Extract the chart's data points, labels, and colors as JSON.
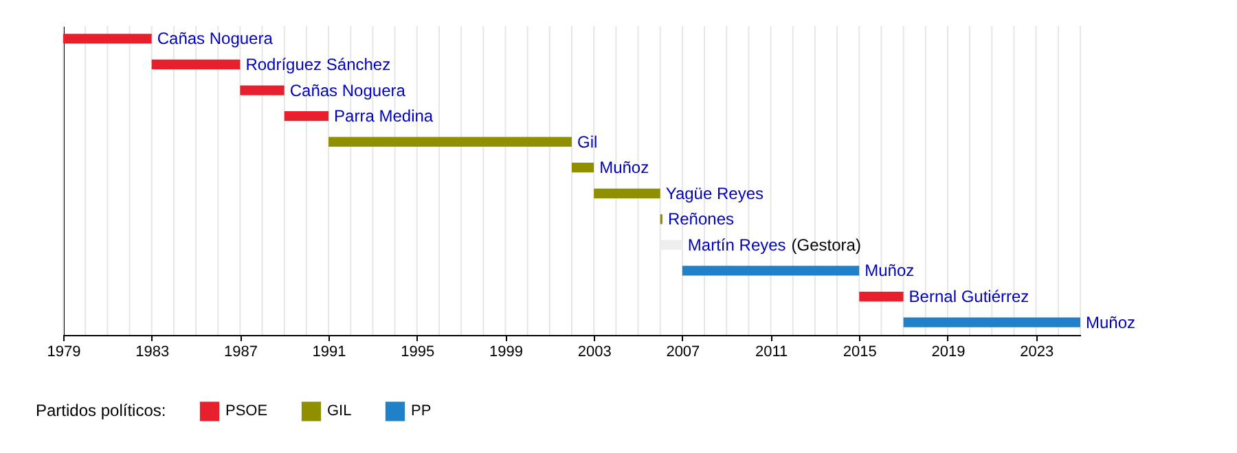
{
  "chart_data": {
    "type": "bar",
    "orientation": "horizontal",
    "legend_title": "Partidos políticos:",
    "legend": "bottom left",
    "grid": "x",
    "tick_labels": "x",
    "categories": [
      "Cañas Noguera",
      "Rodríguez Sánchez",
      "Cañas Noguera",
      "Parra Medina",
      "Gil",
      "Muñoz",
      "Yagüe Reyes",
      "Reñones",
      "Martín Reyes",
      "Muñoz",
      "Bernal Gutiérrez",
      "Muñoz"
    ],
    "series": [
      {
        "name": "PSOE",
        "color": "#e8202e",
        "values": [
          4,
          4,
          2,
          2,
          null,
          null,
          null,
          null,
          null,
          null,
          2,
          null
        ],
        "base": [
          1979,
          1983,
          1987,
          1989,
          null,
          null,
          null,
          null,
          null,
          null,
          2015,
          null
        ]
      },
      {
        "name": "GIL",
        "color": "#8f8f00",
        "values": [
          null,
          null,
          null,
          null,
          11,
          1,
          3,
          0.1,
          null,
          null,
          null,
          null
        ],
        "base": [
          null,
          null,
          null,
          null,
          1991,
          2002,
          2003,
          2006,
          null,
          null,
          null,
          null
        ]
      },
      {
        "name": "PP",
        "color": "#2080c8",
        "values": [
          null,
          null,
          null,
          null,
          null,
          null,
          null,
          null,
          null,
          8,
          null,
          8
        ],
        "base": [
          null,
          null,
          null,
          null,
          null,
          null,
          null,
          null,
          null,
          2007,
          null,
          2017
        ]
      },
      {
        "color": "#eeeeee",
        "values": [
          null,
          null,
          null,
          null,
          null,
          null,
          null,
          null,
          1,
          null,
          null,
          null
        ],
        "base": [
          null,
          null,
          null,
          null,
          null,
          null,
          null,
          null,
          2006,
          null,
          null,
          null
        ]
      }
    ],
    "annotations": [
      "(Gestora)"
    ],
    "xlim": [
      1979,
      2025
    ],
    "xticks": [
      1979,
      {
        "value": 1980,
        "label": null
      },
      {
        "value": 1981,
        "label": null
      },
      {
        "value": 1982,
        "label": null
      },
      1983,
      {
        "value": 1984,
        "label": null
      },
      {
        "value": 1985,
        "label": null
      },
      {
        "value": 1986,
        "label": null
      },
      1987,
      {
        "value": 1988,
        "label": null
      },
      {
        "value": 1989,
        "label": null
      },
      {
        "value": 1990,
        "label": null
      },
      1991,
      {
        "value": 1992,
        "label": null
      },
      {
        "value": 1993,
        "label": null
      },
      {
        "value": 1994,
        "label": null
      },
      1995,
      {
        "value": 1996,
        "label": null
      },
      {
        "value": 1997,
        "label": null
      },
      {
        "value": 1998,
        "label": null
      },
      1999,
      {
        "value": 2000,
        "label": null
      },
      {
        "value": 2001,
        "label": null
      },
      {
        "value": 2002,
        "label": null
      },
      2003,
      {
        "value": 2004,
        "label": null
      },
      {
        "value": 2005,
        "label": null
      },
      {
        "value": 2006,
        "label": null
      },
      2007,
      {
        "value": 2008,
        "label": null
      },
      {
        "value": 2009,
        "label": null
      },
      {
        "value": 2010,
        "label": null
      },
      2011,
      {
        "value": 2012,
        "label": null
      },
      {
        "value": 2013,
        "label": null
      },
      {
        "value": 2014,
        "label": null
      },
      2015,
      {
        "value": 2016,
        "label": null
      },
      {
        "value": 2017,
        "label": null
      },
      {
        "value": 2018,
        "label": null
      },
      2019,
      {
        "value": 2020,
        "label": null
      },
      {
        "value": 2021,
        "label": null
      },
      {
        "value": 2022,
        "label": null
      },
      2023,
      {
        "value": 2024,
        "label": null
      },
      {
        "value": 2025,
        "label": null
      }
    ]
  }
}
